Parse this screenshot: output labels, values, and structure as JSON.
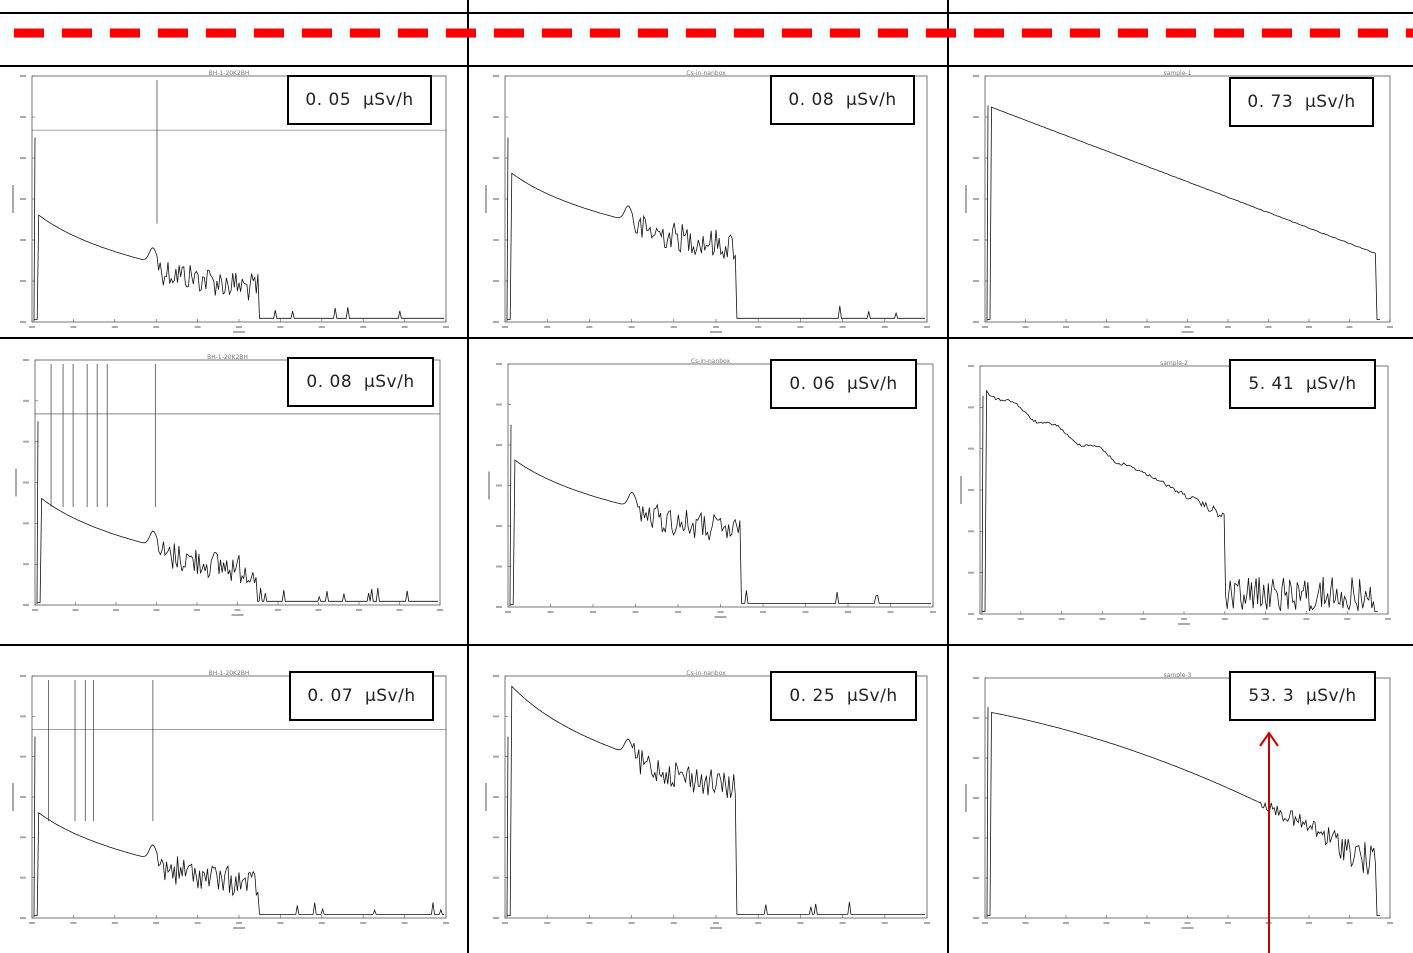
{
  "colors": {
    "grid_line": "#000000",
    "dashed_line": "#ff0000",
    "arrow": "#cc0000",
    "spectrum": "#111111"
  },
  "chart_data": [
    {
      "type": "line",
      "row": 1,
      "col": 1,
      "yscale": "log",
      "dose_label": "0. 05  μSv/h",
      "dose_rate_uSv_h": 0.05,
      "title": "BH-1-20K2BH",
      "peaks_x": [
        300
      ]
    },
    {
      "type": "line",
      "row": 1,
      "col": 2,
      "yscale": "log",
      "dose_label": "0. 08  μSv/h",
      "dose_rate_uSv_h": 0.08,
      "title": "Cs-in-nanbox",
      "peaks_x": [
        290
      ]
    },
    {
      "type": "line",
      "row": 1,
      "col": 3,
      "yscale": "log",
      "dose_label": "0. 73  μSv/h",
      "dose_rate_uSv_h": 0.73,
      "title": "sample-1",
      "peaks_x": []
    },
    {
      "type": "line",
      "row": 2,
      "col": 1,
      "yscale": "log",
      "dose_label": "0. 08  μSv/h",
      "dose_rate_uSv_h": 0.08,
      "title": "BH-1-20K2BH",
      "peaks_x": [
        35,
        65,
        90,
        125,
        150,
        175,
        295
      ]
    },
    {
      "type": "line",
      "row": 2,
      "col": 2,
      "yscale": "log",
      "dose_label": "0. 06  μSv/h",
      "dose_rate_uSv_h": 0.06,
      "title": "Cs-in-nanbox",
      "peaks_x": [
        290
      ]
    },
    {
      "type": "line",
      "row": 2,
      "col": 3,
      "yscale": "log",
      "dose_label": "5. 41  μSv/h",
      "dose_rate_uSv_h": 5.41,
      "title": "sample-2",
      "peaks_x": []
    },
    {
      "type": "line",
      "row": 3,
      "col": 1,
      "yscale": "log",
      "dose_label": "0. 07  μSv/h",
      "dose_rate_uSv_h": 0.07,
      "title": "BH-1-20K2BH",
      "peaks_x": [
        35,
        100,
        125,
        145,
        290
      ]
    },
    {
      "type": "line",
      "row": 3,
      "col": 2,
      "yscale": "log",
      "dose_label": "0. 25  μSv/h",
      "dose_rate_uSv_h": 0.25,
      "title": "Cs-in-nanbox",
      "peaks_x": [
        290
      ]
    },
    {
      "type": "line",
      "row": 3,
      "col": 3,
      "yscale": "log",
      "dose_label": "53. 3  μSv/h",
      "dose_rate_uSv_h": 53.3,
      "title": "sample-3",
      "peaks_x": []
    }
  ]
}
